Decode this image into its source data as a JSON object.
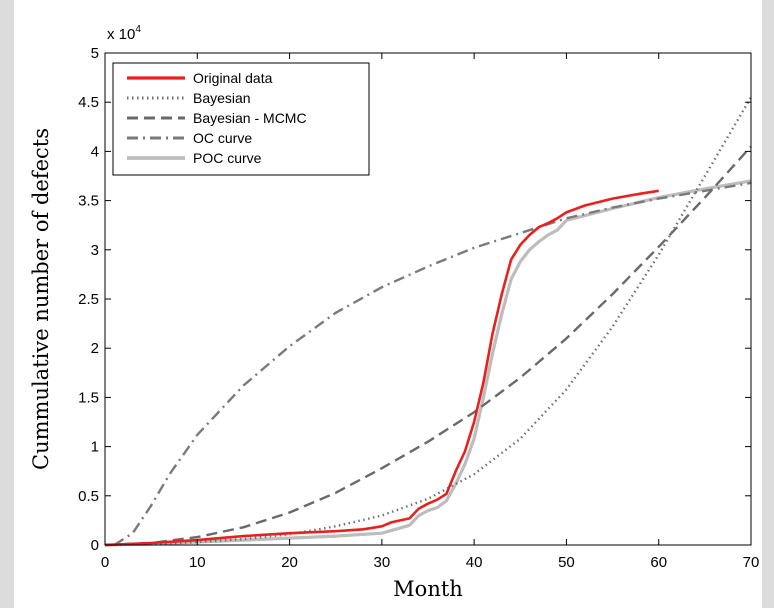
{
  "chart_data": {
    "type": "line",
    "xlabel": "Month",
    "ylabel": "Cummulative number of defects",
    "y_multiplier_label": "x 10",
    "y_multiplier_exponent": "4",
    "xlim": [
      0,
      70
    ],
    "ylim": [
      0,
      5
    ],
    "xticks": [
      0,
      10,
      20,
      30,
      40,
      50,
      60,
      70
    ],
    "yticks": [
      0,
      0.5,
      1,
      1.5,
      2,
      2.5,
      3,
      3.5,
      4,
      4.5,
      5
    ],
    "xtick_labels": [
      "0",
      "10",
      "20",
      "30",
      "40",
      "50",
      "60",
      "70"
    ],
    "ytick_labels": [
      "0",
      "0.5",
      "1",
      "1.5",
      "2",
      "2.5",
      "3",
      "3.5",
      "4",
      "4.5",
      "5"
    ],
    "grid": false,
    "legend_position": "top-left",
    "series": [
      {
        "name": "Original data",
        "color": "#e8201e",
        "style": "solid",
        "x": [
          0,
          5,
          10,
          15,
          20,
          25,
          28,
          30,
          31,
          32,
          33,
          34,
          35,
          36,
          37,
          38,
          39,
          40,
          41,
          42,
          43,
          44,
          45,
          46,
          47,
          48,
          49,
          50,
          52,
          55,
          58,
          60
        ],
        "y": [
          0,
          0.02,
          0.05,
          0.09,
          0.12,
          0.14,
          0.16,
          0.19,
          0.23,
          0.25,
          0.27,
          0.37,
          0.42,
          0.46,
          0.52,
          0.75,
          0.95,
          1.25,
          1.65,
          2.15,
          2.55,
          2.9,
          3.05,
          3.15,
          3.23,
          3.27,
          3.32,
          3.38,
          3.45,
          3.52,
          3.57,
          3.6
        ]
      },
      {
        "name": "Bayesian",
        "color": "#707070",
        "style": "dotted",
        "x": [
          0,
          5,
          10,
          15,
          20,
          25,
          30,
          35,
          40,
          45,
          50,
          55,
          60,
          65,
          70
        ],
        "y": [
          0,
          0.01,
          0.03,
          0.06,
          0.11,
          0.19,
          0.3,
          0.47,
          0.72,
          1.08,
          1.58,
          2.22,
          2.95,
          3.75,
          4.55
        ]
      },
      {
        "name": "Bayesian - MCMC",
        "color": "#696969",
        "style": "dashed",
        "x": [
          0,
          5,
          10,
          15,
          20,
          25,
          30,
          35,
          40,
          45,
          50,
          55,
          60,
          65,
          70
        ],
        "y": [
          0,
          0.02,
          0.08,
          0.18,
          0.33,
          0.53,
          0.78,
          1.05,
          1.35,
          1.7,
          2.1,
          2.55,
          3.03,
          3.53,
          4.05
        ]
      },
      {
        "name": "OC curve",
        "color": "#7a7a7a",
        "style": "dashdot",
        "x": [
          1,
          3,
          5,
          7,
          10,
          15,
          20,
          25,
          30,
          35,
          40,
          45,
          50,
          55,
          60,
          65,
          70
        ],
        "y": [
          0,
          0.12,
          0.4,
          0.72,
          1.12,
          1.62,
          2.02,
          2.36,
          2.62,
          2.83,
          3.02,
          3.17,
          3.32,
          3.43,
          3.52,
          3.6,
          3.68
        ]
      },
      {
        "name": "POC curve",
        "color": "#bdbdbd",
        "style": "solid",
        "x": [
          0,
          5,
          10,
          15,
          20,
          25,
          30,
          33,
          34,
          35,
          36,
          37,
          38,
          39,
          40,
          41,
          42,
          43,
          44,
          45,
          46,
          47,
          48,
          49,
          50,
          55,
          60,
          65,
          70
        ],
        "y": [
          0,
          0.01,
          0.03,
          0.05,
          0.07,
          0.09,
          0.12,
          0.2,
          0.3,
          0.35,
          0.38,
          0.45,
          0.62,
          0.82,
          1.08,
          1.5,
          1.95,
          2.35,
          2.7,
          2.88,
          3.0,
          3.08,
          3.15,
          3.2,
          3.3,
          3.42,
          3.53,
          3.62,
          3.7
        ]
      }
    ]
  }
}
